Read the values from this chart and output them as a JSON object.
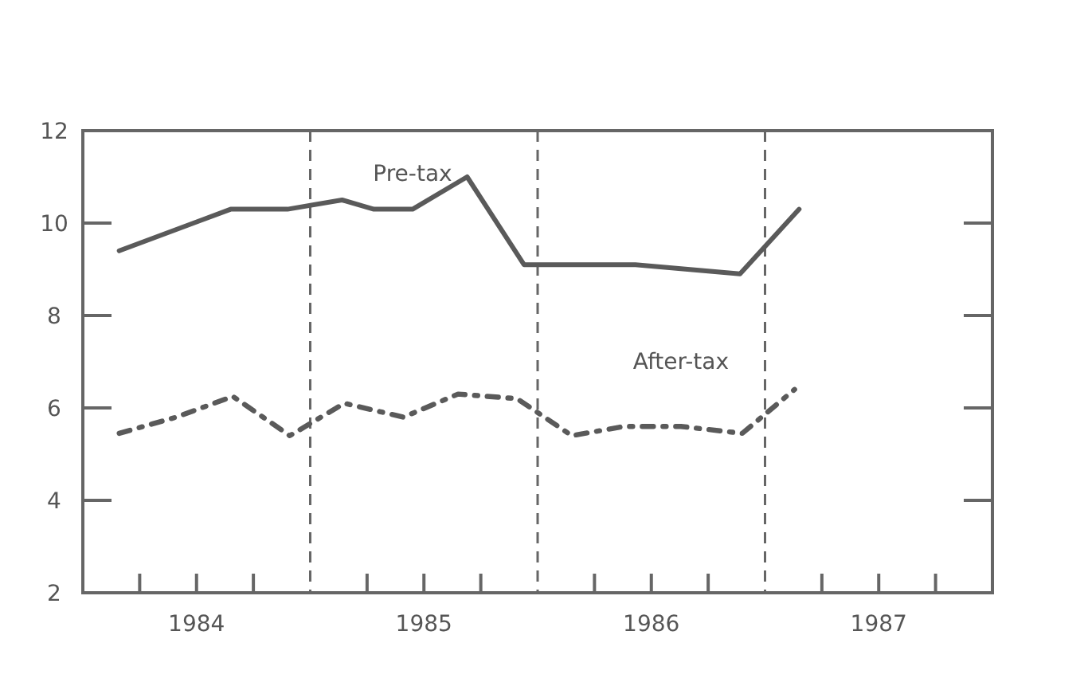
{
  "chart_data": {
    "type": "line",
    "xlim": [
      1984,
      1988
    ],
    "ylim": [
      2,
      12
    ],
    "xticks": [
      {
        "value": 1984.25,
        "label": null
      },
      {
        "value": 1984.5,
        "label": "1984"
      },
      {
        "value": 1984.75,
        "label": null
      },
      {
        "value": 1985.25,
        "label": null
      },
      {
        "value": 1985.5,
        "label": "1985"
      },
      {
        "value": 1985.75,
        "label": null
      },
      {
        "value": 1986.25,
        "label": null
      },
      {
        "value": 1986.5,
        "label": "1986"
      },
      {
        "value": 1986.75,
        "label": null
      },
      {
        "value": 1987.25,
        "label": null
      },
      {
        "value": 1987.5,
        "label": "1987"
      },
      {
        "value": 1987.75,
        "label": null
      }
    ],
    "yticks": [
      2,
      4,
      6,
      8,
      10,
      12
    ],
    "grid": false,
    "marker": "none",
    "ref_lines": [
      {
        "axis": "x",
        "value": 1985,
        "color": "#666666",
        "line_style": "dashed"
      },
      {
        "axis": "x",
        "value": 1986,
        "color": "#666666",
        "line_style": "dashed"
      },
      {
        "axis": "x",
        "value": 1987,
        "color": "#666666",
        "line_style": "dashed"
      }
    ],
    "series": [
      {
        "name": "Pre-tax",
        "color": "#5a5a5a",
        "line_style": "solid",
        "x": [
          1984.16,
          1984.65,
          1984.9,
          1985.14,
          1985.28,
          1985.45,
          1985.69,
          1985.94,
          1986.43,
          1986.89,
          1987.15
        ],
        "values": [
          9.4,
          10.3,
          10.3,
          10.5,
          10.3,
          10.3,
          11.0,
          9.1,
          9.1,
          8.9,
          10.3
        ]
      },
      {
        "name": "After-tax",
        "color": "#5a5a5a",
        "line_style": "dashed",
        "x": [
          1984.16,
          1984.41,
          1984.66,
          1984.91,
          1985.15,
          1985.41,
          1985.65,
          1985.91,
          1986.15,
          1986.38,
          1986.63,
          1986.9,
          1987.13
        ],
        "values": [
          5.45,
          5.8,
          6.25,
          5.4,
          6.1,
          5.8,
          6.3,
          6.2,
          5.4,
          5.6,
          5.6,
          5.45,
          6.4
        ]
      }
    ]
  }
}
